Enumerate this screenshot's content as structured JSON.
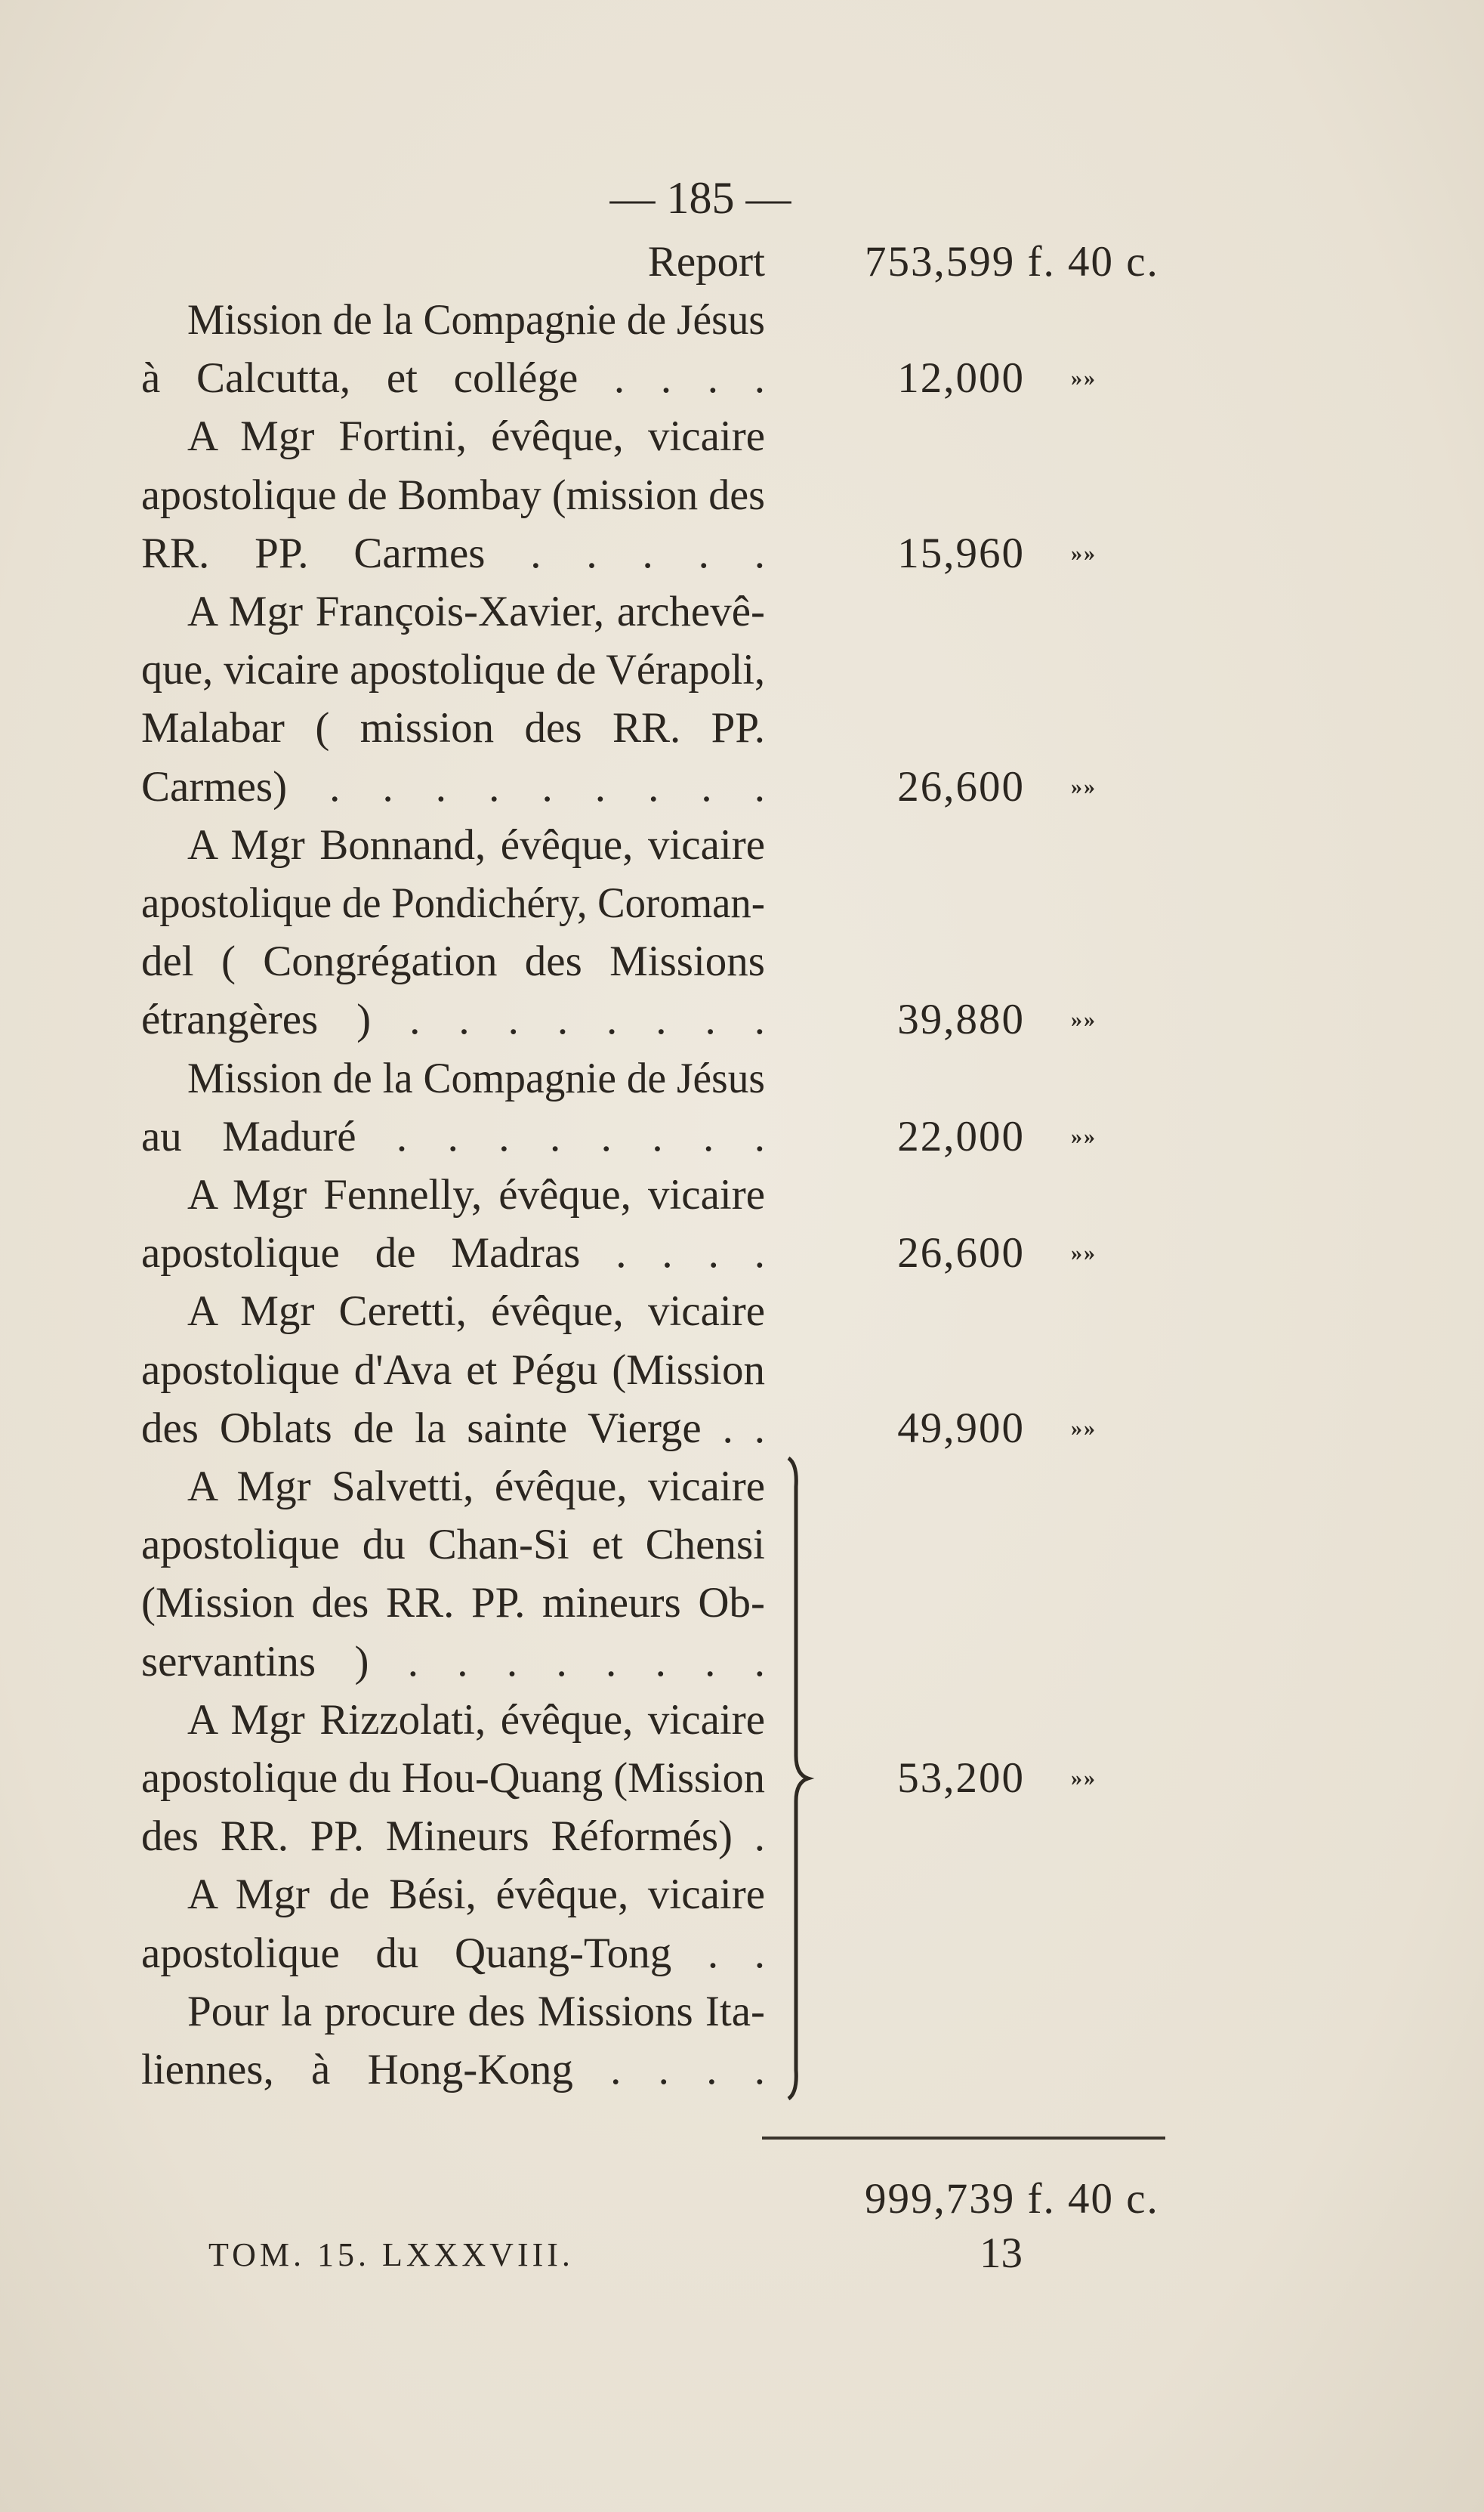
{
  "page_number": "— 185 —",
  "report": {
    "label": "Report",
    "amount": "753,599 f. 40 c."
  },
  "entries": [
    {
      "lines": [
        "Mission de la Compagnie de Jésus",
        "à Calcutta, et collége . . . ."
      ],
      "amount": "12,000",
      "unit": "»»"
    },
    {
      "lines": [
        "A Mgr Fortini, évêque, vicaire",
        "apostolique de Bombay (mission des",
        "RR. PP. Carmes . . . . ."
      ],
      "amount": "15,960",
      "unit": "»»"
    },
    {
      "lines": [
        "A Mgr François-Xavier, archevê-",
        "que, vicaire apostolique de Vérapoli,",
        "Malabar ( mission des RR. PP.",
        "Carmes) . . . . . . . . ."
      ],
      "amount": "26,600",
      "unit": "»»"
    },
    {
      "lines": [
        "A Mgr Bonnand, évêque, vicaire",
        "apostolique de Pondichéry, Coroman-",
        "del ( Congrégation des Missions",
        "étrangères ) . . . . . . . ."
      ],
      "amount": "39,880",
      "unit": "»»"
    },
    {
      "lines": [
        "Mission de la Compagnie de Jésus",
        "au Maduré . . . . . . . ."
      ],
      "amount": "22,000",
      "unit": "»»"
    },
    {
      "lines": [
        "A Mgr Fennelly, évêque, vicaire",
        "apostolique de Madras . . . ."
      ],
      "amount": "26,600",
      "unit": "»»"
    },
    {
      "lines": [
        "A Mgr Ceretti, évêque, vicaire",
        "apostolique d'Ava et Pégu (Mission",
        "des Oblats de la sainte Vierge . ."
      ],
      "amount": "49,900",
      "unit": "»»"
    },
    {
      "group": [
        {
          "lines": [
            "A Mgr Salvetti, évêque, vicaire",
            "apostolique du Chan-Si et Chensi",
            "(Mission des RR. PP. mineurs Ob-",
            "servantins ) . . . . . . . ."
          ]
        },
        {
          "lines": [
            "A Mgr Rizzolati, évêque, vicaire",
            "apostolique du Hou-Quang (Mission",
            "des RR. PP. Mineurs Réformés) ."
          ]
        },
        {
          "lines": [
            "A Mgr de Bési, évêque, vicaire",
            "apostolique du Quang-Tong . ."
          ]
        },
        {
          "lines": [
            "Pour la procure des Missions Ita-",
            "liennes, à Hong-Kong . . . ."
          ]
        }
      ],
      "amount": "53,200",
      "unit": "»»"
    }
  ],
  "total": "999,739 f. 40 c.",
  "footer": {
    "signature": "TOM. 15. LXXXVIII.",
    "folio": "13"
  }
}
